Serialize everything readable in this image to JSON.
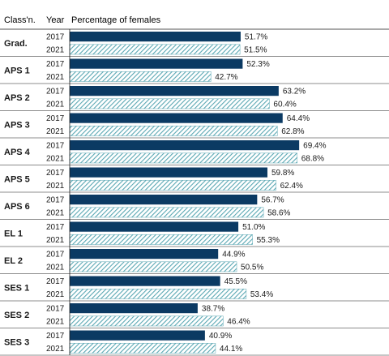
{
  "chart_data": {
    "type": "bar",
    "orientation": "horizontal",
    "headers": {
      "classification": "Class'n.",
      "year": "Year",
      "value": "Percentage of females"
    },
    "groups": [
      {
        "name": "Grad.",
        "values": [
          {
            "year": "2017",
            "value": 51.7,
            "label": "51.7%"
          },
          {
            "year": "2021",
            "value": 51.5,
            "label": "51.5%"
          }
        ]
      },
      {
        "name": "APS 1",
        "values": [
          {
            "year": "2017",
            "value": 52.3,
            "label": "52.3%"
          },
          {
            "year": "2021",
            "value": 42.7,
            "label": "42.7%"
          }
        ]
      },
      {
        "name": "APS 2",
        "values": [
          {
            "year": "2017",
            "value": 63.2,
            "label": "63.2%"
          },
          {
            "year": "2021",
            "value": 60.4,
            "label": "60.4%"
          }
        ]
      },
      {
        "name": "APS 3",
        "values": [
          {
            "year": "2017",
            "value": 64.4,
            "label": "64.4%"
          },
          {
            "year": "2021",
            "value": 62.8,
            "label": "62.8%"
          }
        ]
      },
      {
        "name": "APS 4",
        "values": [
          {
            "year": "2017",
            "value": 69.4,
            "label": "69.4%"
          },
          {
            "year": "2021",
            "value": 68.8,
            "label": "68.8%"
          }
        ]
      },
      {
        "name": "APS 5",
        "values": [
          {
            "year": "2017",
            "value": 59.8,
            "label": "59.8%"
          },
          {
            "year": "2021",
            "value": 62.4,
            "label": "62.4%"
          }
        ]
      },
      {
        "name": "APS 6",
        "values": [
          {
            "year": "2017",
            "value": 56.7,
            "label": "56.7%"
          },
          {
            "year": "2021",
            "value": 58.6,
            "label": "58.6%"
          }
        ]
      },
      {
        "name": "EL 1",
        "values": [
          {
            "year": "2017",
            "value": 51.0,
            "label": "51.0%"
          },
          {
            "year": "2021",
            "value": 55.3,
            "label": "55.3%"
          }
        ]
      },
      {
        "name": "EL 2",
        "values": [
          {
            "year": "2017",
            "value": 44.9,
            "label": "44.9%"
          },
          {
            "year": "2021",
            "value": 50.5,
            "label": "50.5%"
          }
        ]
      },
      {
        "name": "SES 1",
        "values": [
          {
            "year": "2017",
            "value": 45.5,
            "label": "45.5%"
          },
          {
            "year": "2021",
            "value": 53.4,
            "label": "53.4%"
          }
        ]
      },
      {
        "name": "SES 2",
        "values": [
          {
            "year": "2017",
            "value": 38.7,
            "label": "38.7%"
          },
          {
            "year": "2021",
            "value": 46.4,
            "label": "46.4%"
          }
        ]
      },
      {
        "name": "SES 3",
        "values": [
          {
            "year": "2017",
            "value": 40.9,
            "label": "40.9%"
          },
          {
            "year": "2021",
            "value": 44.1,
            "label": "44.1%"
          }
        ]
      }
    ],
    "xlim": [
      0,
      100
    ],
    "grid": false,
    "legend": "none",
    "styles": {
      "2017": {
        "fill": "#0b3a63",
        "pattern": "solid"
      },
      "2021": {
        "fill": "#ffffff",
        "pattern": "diagonal-hatch",
        "stroke": "#5aa7b3"
      }
    },
    "colors": {
      "text": "#1a1a1a",
      "rule": "#1a1a1a"
    }
  }
}
